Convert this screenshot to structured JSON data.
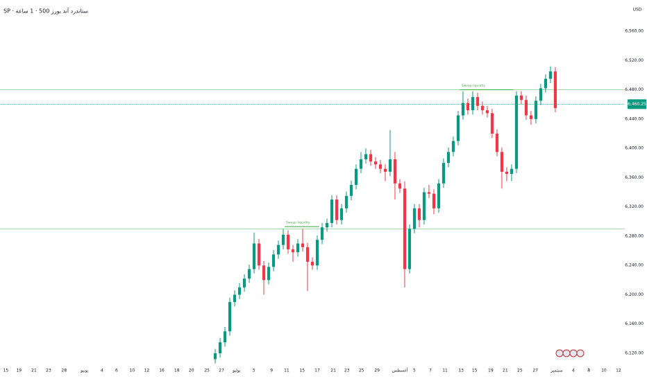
{
  "chart_data": {
    "type": "candlestick",
    "title": "SP · ستاندرد آند بورز 500 · 1 ساعة",
    "currency": "USD",
    "up_color": "#089981",
    "down_color": "#f23645",
    "level_color": "#a5d6a7",
    "annotation_color": "#4caf50",
    "ylim": [
      6120,
      6560
    ],
    "xlim": [
      -44.3,
      84.3
    ],
    "yticks": [
      {
        "value": 6120,
        "label": "6,120.00"
      },
      {
        "value": 6160,
        "label": "6,160.00"
      },
      {
        "value": 6200,
        "label": "6,200.00"
      },
      {
        "value": 6240,
        "label": "6,240.00"
      },
      {
        "value": 6280,
        "label": "6,280.00"
      },
      {
        "value": 6320,
        "label": "6,320.00"
      },
      {
        "value": 6360,
        "label": "6,360.00"
      },
      {
        "value": 6400,
        "label": "6,400.00"
      },
      {
        "value": 6440,
        "label": "6,440.00"
      },
      {
        "value": 6480,
        "label": "6,480.00"
      },
      {
        "value": 6520,
        "label": "6,520.00"
      },
      {
        "value": 6560,
        "label": "6,560.00"
      }
    ],
    "xticks": [
      {
        "value": -43.1,
        "label": "15"
      },
      {
        "value": -40.4,
        "label": "19"
      },
      {
        "value": -37.3,
        "label": "21"
      },
      {
        "value": -34.3,
        "label": "23"
      },
      {
        "value": -31.1,
        "label": "28"
      },
      {
        "value": -26.9,
        "label": "يونيو"
      },
      {
        "value": -23.3,
        "label": "4"
      },
      {
        "value": -20.3,
        "label": "6"
      },
      {
        "value": -17.1,
        "label": "10"
      },
      {
        "value": -14.1,
        "label": "12"
      },
      {
        "value": -11,
        "label": "16"
      },
      {
        "value": -7.9,
        "label": "18"
      },
      {
        "value": -4.9,
        "label": "20"
      },
      {
        "value": -1.7,
        "label": "25"
      },
      {
        "value": 1.3,
        "label": "27"
      },
      {
        "value": 4.4,
        "label": "يوليو"
      },
      {
        "value": 7.9,
        "label": "3"
      },
      {
        "value": 11.6,
        "label": "9"
      },
      {
        "value": 14.7,
        "label": "11"
      },
      {
        "value": 17.9,
        "label": "15"
      },
      {
        "value": 21,
        "label": "17"
      },
      {
        "value": 24.3,
        "label": "21"
      },
      {
        "value": 27.1,
        "label": "23"
      },
      {
        "value": 30.1,
        "label": "25"
      },
      {
        "value": 33.3,
        "label": "29"
      },
      {
        "value": 38,
        "label": "أغسطس"
      },
      {
        "value": 41,
        "label": "5"
      },
      {
        "value": 44.3,
        "label": "7"
      },
      {
        "value": 47.3,
        "label": "11"
      },
      {
        "value": 50.6,
        "label": "13"
      },
      {
        "value": 53.4,
        "label": "15"
      },
      {
        "value": 56.7,
        "label": "19"
      },
      {
        "value": 59.7,
        "label": "21"
      },
      {
        "value": 62.7,
        "label": "25"
      },
      {
        "value": 65.9,
        "label": "27"
      },
      {
        "value": 70.3,
        "label": "سبتمبر"
      },
      {
        "value": 73.7,
        "label": "4"
      },
      {
        "value": 76.9,
        "label": "8"
      },
      {
        "value": 80,
        "label": "10"
      },
      {
        "value": 83,
        "label": "12"
      }
    ],
    "open": [
      6112,
      6120,
      6135,
      6150,
      6190,
      6200,
      6210,
      6222,
      6235,
      6270,
      6240,
      6220,
      6238,
      6255,
      6268,
      6282,
      6262,
      6258,
      6270,
      6265,
      6245,
      6240,
      6275,
      6292,
      6298,
      6330,
      6302,
      6318,
      6335,
      6350,
      6372,
      6385,
      6392,
      6382,
      6378,
      6372,
      6368,
      6385,
      6352,
      6345,
      6235,
      6290,
      6318,
      6302,
      6340,
      6338,
      6318,
      6352,
      6380,
      6395,
      6410,
      6445,
      6462,
      6452,
      6470,
      6458,
      6452,
      6448,
      6420,
      6395,
      6368,
      6365,
      6372,
      6472,
      6466,
      6445,
      6440,
      6465,
      6482,
      6495,
      6505
    ],
    "high": [
      6126,
      6141,
      6156,
      6196,
      6206,
      6216,
      6228,
      6241,
      6285,
      6276,
      6246,
      6244,
      6261,
      6274,
      6290,
      6288,
      6268,
      6276,
      6290,
      6271,
      6251,
      6281,
      6298,
      6304,
      6336,
      6336,
      6324,
      6341,
      6356,
      6378,
      6395,
      6400,
      6398,
      6388,
      6384,
      6378,
      6425,
      6395,
      6358,
      6355,
      6296,
      6324,
      6324,
      6346,
      6350,
      6344,
      6358,
      6386,
      6401,
      6416,
      6451,
      6478,
      6468,
      6478,
      6476,
      6464,
      6458,
      6454,
      6426,
      6401,
      6374,
      6378,
      6478,
      6478,
      6472,
      6451,
      6471,
      6488,
      6501,
      6512,
      6511
    ],
    "low": [
      6106,
      6114,
      6129,
      6144,
      6184,
      6194,
      6204,
      6216,
      6229,
      6234,
      6200,
      6214,
      6232,
      6249,
      6262,
      6256,
      6245,
      6252,
      6259,
      6205,
      6234,
      6234,
      6269,
      6286,
      6292,
      6296,
      6296,
      6312,
      6329,
      6344,
      6366,
      6379,
      6376,
      6372,
      6366,
      6355,
      6362,
      6330,
      6339,
      6210,
      6229,
      6284,
      6292,
      6296,
      6332,
      6310,
      6312,
      6346,
      6374,
      6389,
      6404,
      6439,
      6446,
      6446,
      6452,
      6446,
      6442,
      6414,
      6389,
      6345,
      6355,
      6355,
      6366,
      6460,
      6439,
      6432,
      6434,
      6459,
      6476,
      6489,
      6449
    ],
    "close": [
      6120,
      6135,
      6150,
      6190,
      6200,
      6210,
      6222,
      6235,
      6270,
      6240,
      6220,
      6238,
      6255,
      6268,
      6282,
      6262,
      6258,
      6270,
      6265,
      6245,
      6240,
      6275,
      6292,
      6298,
      6330,
      6302,
      6318,
      6335,
      6350,
      6372,
      6385,
      6392,
      6382,
      6378,
      6372,
      6368,
      6385,
      6352,
      6345,
      6235,
      6290,
      6318,
      6302,
      6340,
      6338,
      6318,
      6352,
      6380,
      6395,
      6410,
      6445,
      6462,
      6452,
      6470,
      6458,
      6452,
      6448,
      6420,
      6395,
      6368,
      6365,
      6372,
      6472,
      6466,
      6445,
      6440,
      6465,
      6482,
      6495,
      6505,
      6455
    ],
    "levels": [
      6480,
      6290
    ],
    "annotations": [
      {
        "text": "Sweep liquidity",
        "value": 6293,
        "from": 14.3,
        "to": 21.4
      },
      {
        "text": "Sweep liquidity",
        "value": 6480,
        "from": 50.4,
        "to": 61.4
      }
    ],
    "last_price": {
      "value": 6460.25,
      "label": "6,460.25"
    }
  }
}
